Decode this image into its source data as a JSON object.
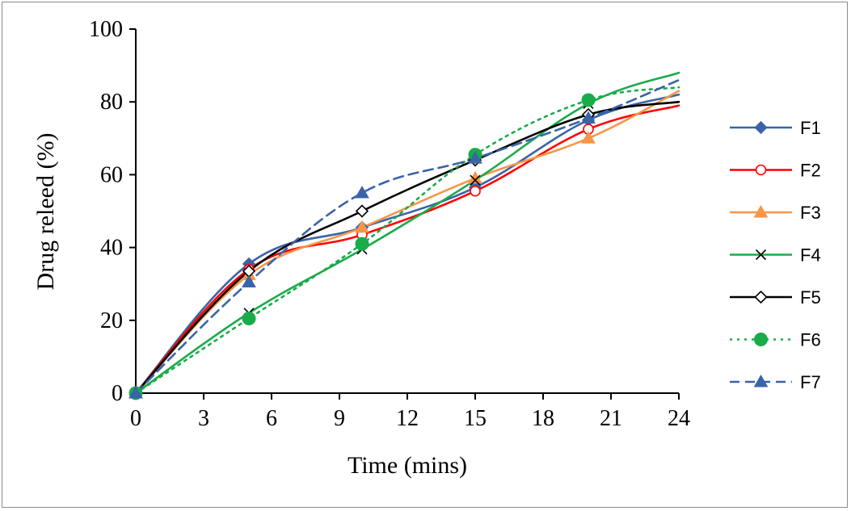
{
  "chart_data": {
    "type": "line",
    "xlabel": "Time (mins)",
    "ylabel": "Drug releed (%)",
    "xlim": [
      0,
      24
    ],
    "ylim": [
      0,
      100
    ],
    "xticks": [
      0,
      3,
      6,
      9,
      12,
      15,
      18,
      21,
      24
    ],
    "yticks": [
      0,
      20,
      40,
      60,
      80,
      100
    ],
    "grid": false,
    "legend_position": "right",
    "x": [
      0,
      5,
      10,
      15,
      20,
      24
    ],
    "series": [
      {
        "name": "F1",
        "values": [
          0,
          35.5,
          45.5,
          56.5,
          75.0,
          82.0
        ],
        "color": "#3a64a8",
        "marker": "diamond-filled",
        "dash": "solid"
      },
      {
        "name": "F2",
        "values": [
          0,
          34.0,
          43.5,
          55.5,
          72.5,
          79.0
        ],
        "color": "#ff0000",
        "marker": "circle-open",
        "dash": "solid"
      },
      {
        "name": "F3",
        "values": [
          0,
          32.5,
          45.5,
          59.0,
          70.0,
          83.0
        ],
        "color": "#f79646",
        "marker": "triangle-filled",
        "dash": "solid"
      },
      {
        "name": "F4",
        "values": [
          0,
          22.0,
          39.5,
          58.5,
          79.5,
          88.0
        ],
        "color": "#1aab4a",
        "marker": "x",
        "dash": "solid"
      },
      {
        "name": "F5",
        "values": [
          0,
          33.5,
          50.0,
          64.0,
          76.5,
          80.0
        ],
        "color": "#000000",
        "marker": "diamond-open",
        "dash": "solid"
      },
      {
        "name": "F6",
        "values": [
          0,
          20.5,
          41.0,
          65.5,
          80.5,
          84.0
        ],
        "color": "#1aab4a",
        "marker": "circle-filled",
        "dash": "dotted"
      },
      {
        "name": "F7",
        "values": [
          0,
          30.5,
          55.0,
          64.5,
          75.5,
          86.0
        ],
        "color": "#3a64a8",
        "marker": "triangle-filled",
        "dash": "dashed"
      }
    ]
  }
}
